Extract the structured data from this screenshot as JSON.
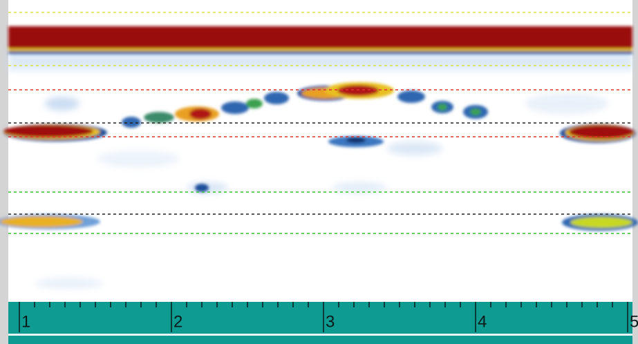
{
  "ruler": {
    "labels": [
      "1",
      "2",
      "3",
      "4",
      "5"
    ]
  }
}
